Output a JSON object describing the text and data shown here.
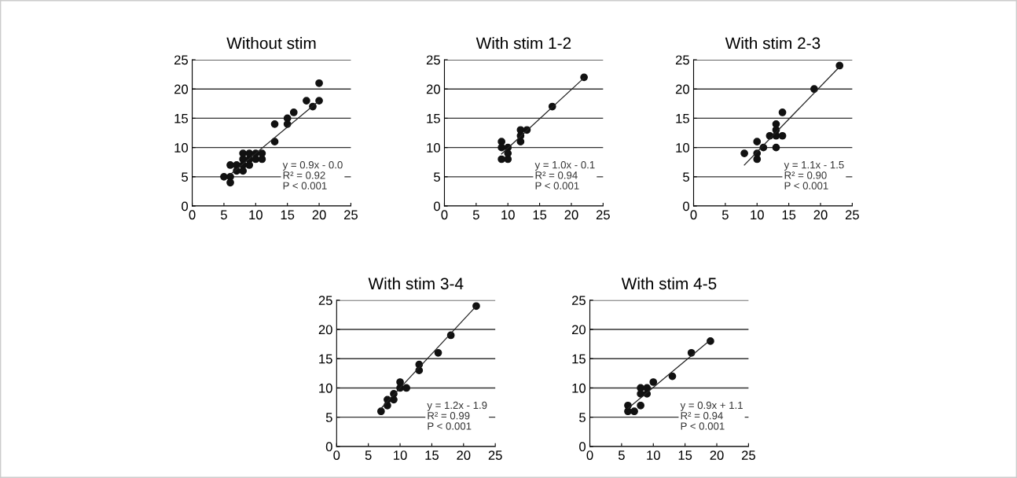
{
  "chart_data": [
    {
      "type": "scatter",
      "title": "Without stim",
      "xlim": [
        0,
        25
      ],
      "ylim": [
        0,
        25
      ],
      "xticks": [
        0,
        5,
        10,
        15,
        20,
        25
      ],
      "yticks": [
        0,
        5,
        10,
        15,
        20,
        25
      ],
      "grid": "y",
      "annotations": [
        "y = 0.9x - 0.0\nR² = 0.92\nP < 0.001"
      ],
      "series": [
        {
          "color": "#111111",
          "marker": "circle",
          "x": [
            5,
            6,
            6,
            6,
            7,
            7,
            8,
            8,
            8,
            8,
            9,
            9,
            9,
            10,
            10,
            11,
            11,
            13,
            13,
            15,
            15,
            16,
            18,
            19,
            20,
            20
          ],
          "values": [
            5,
            5,
            4,
            7,
            7,
            6,
            6,
            7,
            8,
            9,
            7,
            8,
            9,
            8,
            9,
            8,
            9,
            14,
            11,
            15,
            14,
            16,
            18,
            17,
            21,
            18
          ]
        },
        {
          "type": "line",
          "color": "#222222",
          "marker": "none",
          "x": [
            6,
            20
          ],
          "values": [
            5.4,
            18
          ]
        }
      ]
    },
    {
      "type": "scatter",
      "title": "With stim 1-2",
      "xlim": [
        0,
        25
      ],
      "ylim": [
        0,
        25
      ],
      "xticks": [
        0,
        5,
        10,
        15,
        20,
        25
      ],
      "yticks": [
        0,
        5,
        10,
        15,
        20,
        25
      ],
      "grid": "y",
      "annotations": [
        "y = 1.0x - 0.1\nR² = 0.94\nP < 0.001"
      ],
      "series": [
        {
          "color": "#111111",
          "marker": "circle",
          "x": [
            9,
            9,
            9,
            10,
            10,
            10,
            12,
            12,
            12,
            13,
            17,
            22
          ],
          "values": [
            11,
            10,
            8,
            10,
            9,
            8,
            13,
            12,
            11,
            13,
            17,
            22
          ]
        },
        {
          "type": "line",
          "color": "#222222",
          "marker": "none",
          "x": [
            9,
            22
          ],
          "values": [
            8.9,
            21.9
          ]
        }
      ]
    },
    {
      "type": "scatter",
      "title": "With stim 2-3",
      "xlim": [
        0,
        25
      ],
      "ylim": [
        0,
        25
      ],
      "xticks": [
        0,
        5,
        10,
        15,
        20,
        25
      ],
      "yticks": [
        0,
        5,
        10,
        15,
        20,
        25
      ],
      "grid": "y",
      "annotations": [
        "y = 1.1x - 1.5\nR² = 0.90\nP < 0.001"
      ],
      "series": [
        {
          "color": "#111111",
          "marker": "circle",
          "x": [
            8,
            10,
            10,
            10,
            11,
            12,
            13,
            13,
            13,
            13,
            14,
            14,
            19,
            23
          ],
          "values": [
            9,
            11,
            9,
            8,
            10,
            12,
            14,
            13,
            12,
            10,
            16,
            12,
            20,
            24
          ]
        },
        {
          "type": "line",
          "color": "#222222",
          "marker": "none",
          "x": [
            8,
            23
          ],
          "values": [
            7,
            23.8
          ]
        }
      ]
    },
    {
      "type": "scatter",
      "title": "With stim 3-4",
      "xlim": [
        0,
        25
      ],
      "ylim": [
        0,
        25
      ],
      "xticks": [
        0,
        5,
        10,
        15,
        20,
        25
      ],
      "yticks": [
        0,
        5,
        10,
        15,
        20,
        25
      ],
      "grid": "y",
      "annotations": [
        "y = 1.2x - 1.9\nR² = 0.99\nP < 0.001"
      ],
      "series": [
        {
          "color": "#111111",
          "marker": "circle",
          "x": [
            7,
            8,
            8,
            9,
            9,
            10,
            10,
            11,
            13,
            13,
            16,
            18,
            22
          ],
          "values": [
            6,
            8,
            7,
            9,
            8,
            11,
            10,
            10,
            14,
            13,
            16,
            19,
            24
          ]
        },
        {
          "type": "line",
          "color": "#222222",
          "marker": "none",
          "x": [
            7,
            22
          ],
          "values": [
            6.5,
            24
          ]
        }
      ]
    },
    {
      "type": "scatter",
      "title": "With stim 4-5",
      "xlim": [
        0,
        25
      ],
      "ylim": [
        0,
        25
      ],
      "xticks": [
        0,
        5,
        10,
        15,
        20,
        25
      ],
      "yticks": [
        0,
        5,
        10,
        15,
        20,
        25
      ],
      "grid": "y",
      "annotations": [
        "y = 0.9x + 1.1\nR² = 0.94\nP < 0.001"
      ],
      "series": [
        {
          "color": "#111111",
          "marker": "circle",
          "x": [
            6,
            6,
            7,
            8,
            8,
            8,
            9,
            9,
            10,
            13,
            16,
            19
          ],
          "values": [
            7,
            6,
            6,
            10,
            9,
            7,
            10,
            9,
            11,
            12,
            16,
            18
          ]
        },
        {
          "type": "line",
          "color": "#222222",
          "marker": "none",
          "x": [
            6,
            19
          ],
          "values": [
            6.5,
            18.2
          ]
        }
      ]
    }
  ]
}
